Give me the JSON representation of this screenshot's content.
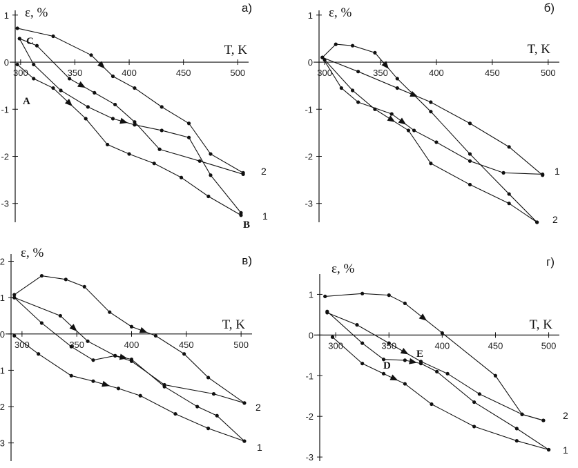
{
  "chart_data": [
    {
      "type": "line",
      "panel_label": "а)",
      "xlabel": "T, K",
      "ylabel": "ε, %",
      "xlim": [
        295,
        510
      ],
      "ylim": [
        -3.4,
        1.1
      ],
      "xticks": [
        300,
        350,
        400,
        450,
        500
      ],
      "yticks": [
        1,
        0,
        -1,
        -2,
        -3
      ],
      "series": [
        {
          "name": "1",
          "x": [
            299,
            312,
            337,
            362,
            385,
            405,
            430,
            455,
            475,
            503
          ],
          "y": [
            0.5,
            -0.05,
            -0.6,
            -0.95,
            -1.2,
            -1.33,
            -1.45,
            -1.6,
            -2.4,
            -3.2
          ]
        },
        {
          "name": "",
          "x": [
            297,
            312,
            330,
            360,
            380,
            400,
            423,
            448,
            473,
            503
          ],
          "y": [
            -0.05,
            -0.35,
            -0.55,
            -1.2,
            -1.75,
            -1.95,
            -2.15,
            -2.45,
            -2.85,
            -3.25
          ]
        },
        {
          "name": "2",
          "x": [
            297,
            330,
            365,
            385,
            405,
            430,
            455,
            475,
            505
          ],
          "y": [
            0.72,
            0.55,
            0.15,
            -0.3,
            -0.55,
            -0.95,
            -1.3,
            -1.95,
            -2.35
          ]
        },
        {
          "name": "",
          "x": [
            299,
            315,
            345,
            368,
            387,
            405,
            428,
            465,
            505
          ],
          "y": [
            0.5,
            0.35,
            -0.35,
            -0.65,
            -0.9,
            -1.27,
            -1.85,
            -2.1,
            -2.38
          ]
        }
      ],
      "curve_labels": [
        "2",
        "1"
      ],
      "annotations": [
        "C",
        "A",
        "B"
      ]
    },
    {
      "type": "line",
      "panel_label": "б)",
      "xlabel": "T, K",
      "ylabel": "ε, %",
      "xlim": [
        295,
        510
      ],
      "ylim": [
        -3.4,
        1.1
      ],
      "xticks": [
        300,
        350,
        400,
        450,
        500
      ],
      "yticks": [
        1,
        0,
        -1,
        -2,
        -3
      ],
      "series": [
        {
          "name": "1",
          "x": [
            298,
            330,
            365,
            395,
            430,
            465,
            495
          ],
          "y": [
            0.1,
            -0.2,
            -0.55,
            -0.85,
            -1.3,
            -1.8,
            -2.4
          ]
        },
        {
          "name": "",
          "x": [
            298,
            315,
            330,
            360,
            380,
            400,
            430,
            460,
            495
          ],
          "y": [
            0.1,
            -0.55,
            -0.85,
            -1.1,
            -1.45,
            -1.7,
            -2.1,
            -2.35,
            -2.38
          ]
        },
        {
          "name": "2",
          "x": [
            298,
            310,
            325,
            345,
            365,
            395,
            430,
            465,
            490
          ],
          "y": [
            0.1,
            0.38,
            0.35,
            0.2,
            -0.35,
            -1.05,
            -1.95,
            -2.8,
            -3.4
          ]
        },
        {
          "name": "",
          "x": [
            300,
            325,
            345,
            375,
            395,
            430,
            465,
            490
          ],
          "y": [
            0.05,
            -0.6,
            -1.0,
            -1.45,
            -2.15,
            -2.6,
            -3.0,
            -3.4
          ]
        }
      ],
      "curve_labels": [
        "1",
        "2"
      ],
      "annotations": []
    },
    {
      "type": "line",
      "panel_label": "в)",
      "xlabel": "T, K",
      "ylabel": "ε, %",
      "xlim": [
        290,
        510
      ],
      "ylim": [
        -3.5,
        2.2
      ],
      "xticks": [
        300,
        350,
        400,
        450,
        500
      ],
      "yticks": [
        2,
        1,
        0,
        -1,
        -2,
        -3
      ],
      "series": [
        {
          "name": "2",
          "x": [
            293,
            318,
            340,
            357,
            380,
            400,
            422,
            448,
            470,
            503
          ],
          "y": [
            1.08,
            1.6,
            1.5,
            1.3,
            0.6,
            0.2,
            -0.05,
            -0.55,
            -1.2,
            -1.9
          ]
        },
        {
          "name": "",
          "x": [
            293,
            335,
            360,
            385,
            400,
            430,
            475,
            503
          ],
          "y": [
            1.0,
            0.5,
            -0.2,
            -0.6,
            -0.75,
            -1.4,
            -1.65,
            -1.9
          ]
        },
        {
          "name": "1",
          "x": [
            293,
            318,
            345,
            365,
            385,
            400,
            430,
            460,
            478,
            503
          ],
          "y": [
            1.0,
            0.3,
            -0.35,
            -0.72,
            -0.6,
            -0.7,
            -1.45,
            -2.0,
            -2.25,
            -2.95
          ]
        },
        {
          "name": "",
          "x": [
            293,
            315,
            345,
            365,
            388,
            408,
            440,
            470,
            503
          ],
          "y": [
            -0.05,
            -0.55,
            -1.15,
            -1.3,
            -1.5,
            -1.7,
            -2.2,
            -2.6,
            -2.95
          ]
        }
      ],
      "curve_labels": [
        "2",
        "1"
      ],
      "annotations": []
    },
    {
      "type": "line",
      "panel_label": "г)",
      "xlabel": "T, K",
      "ylabel": "ε, %",
      "xlim": [
        285,
        510
      ],
      "ylim": [
        -3.1,
        1.5
      ],
      "xticks": [
        300,
        350,
        400,
        450,
        500
      ],
      "yticks": [
        1,
        0,
        -1,
        -2,
        -3
      ],
      "series": [
        {
          "name": "2",
          "x": [
            290,
            325,
            350,
            365,
            400,
            450,
            475,
            495
          ],
          "y": [
            0.95,
            1.02,
            0.98,
            0.78,
            0.05,
            -1.0,
            -1.95,
            -2.1
          ]
        },
        {
          "name": "",
          "x": [
            292,
            320,
            350,
            380,
            405,
            435,
            475,
            495
          ],
          "y": [
            0.55,
            0.25,
            -0.2,
            -0.65,
            -0.95,
            -1.45,
            -1.95,
            -2.1
          ]
        },
        {
          "name": "",
          "x": [
            292,
            325,
            345,
            365,
            380,
            395,
            430,
            470,
            500
          ],
          "y": [
            0.58,
            -0.2,
            -0.6,
            -0.62,
            -0.7,
            -0.9,
            -1.65,
            -2.3,
            -2.82
          ]
        },
        {
          "name": "1",
          "x": [
            297,
            325,
            345,
            365,
            390,
            430,
            470,
            500
          ],
          "y": [
            -0.05,
            -0.7,
            -0.95,
            -1.2,
            -1.7,
            -2.25,
            -2.6,
            -2.82
          ]
        }
      ],
      "curve_labels": [
        "2",
        "1"
      ],
      "annotations": [
        "D",
        "E"
      ]
    }
  ]
}
